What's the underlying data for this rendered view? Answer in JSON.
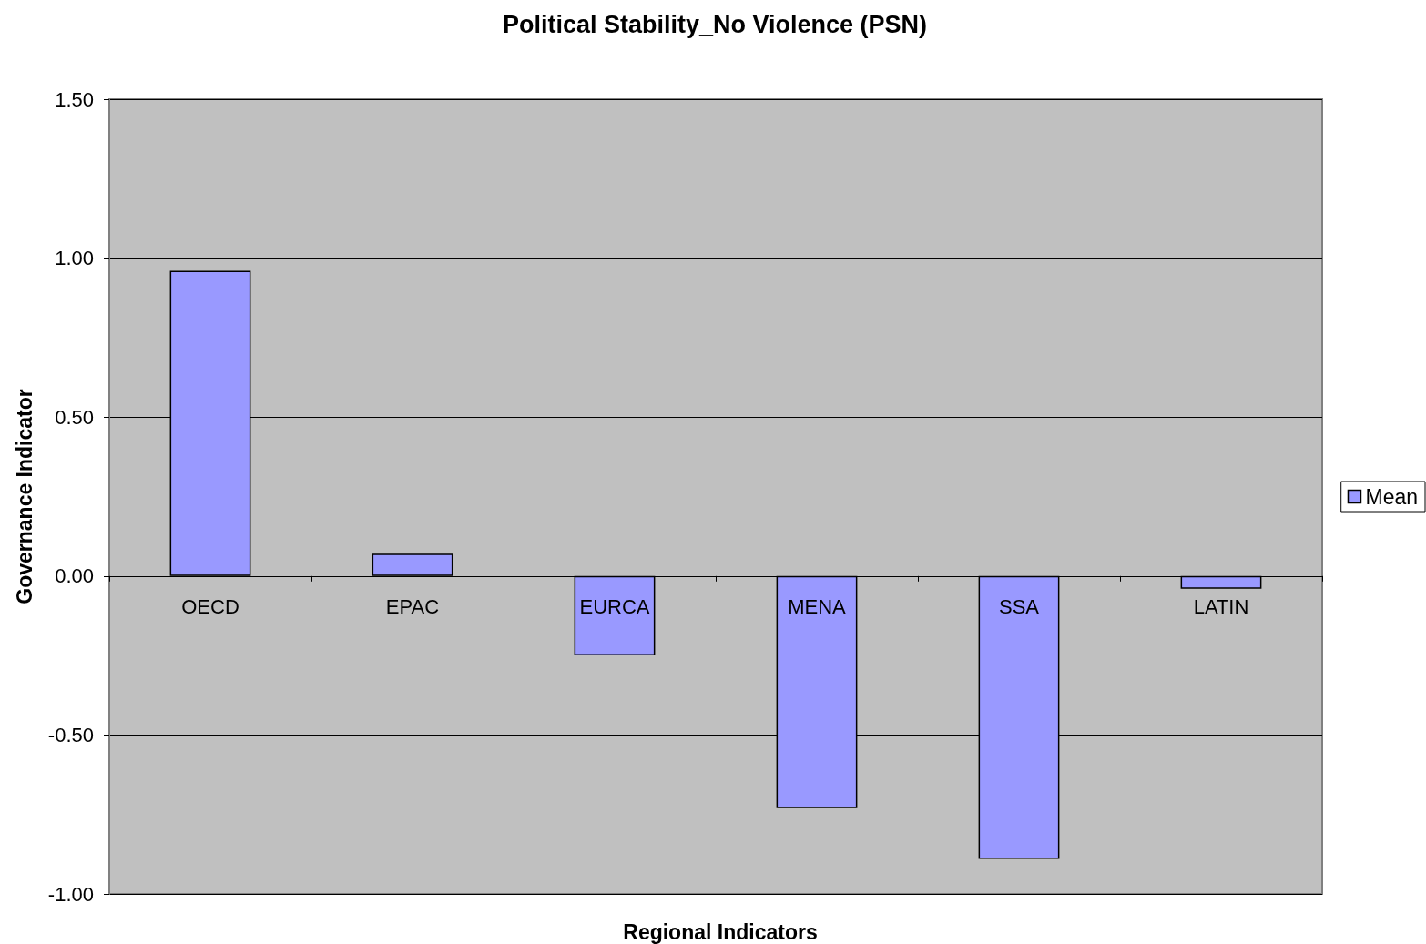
{
  "chart_data": {
    "type": "bar",
    "title": "Political Stability_No Violence (PSN)",
    "xlabel": "Regional Indicators",
    "ylabel": "Governance Indicator",
    "categories": [
      "OECD",
      "EPAC",
      "EURCA",
      "MENA",
      "SSA",
      "LATIN"
    ],
    "series": [
      {
        "name": "Mean",
        "color": "#9999ff",
        "values": [
          0.96,
          0.07,
          -0.25,
          -0.73,
          -0.89,
          -0.04
        ]
      }
    ],
    "ylim": [
      -1,
      1.5
    ],
    "yticks": [
      {
        "value": -1,
        "label": "-1.00"
      },
      {
        "value": -0.5,
        "label": "-0.50"
      },
      {
        "value": 0,
        "label": "0.00"
      },
      {
        "value": 0.5,
        "label": "0.50"
      },
      {
        "value": 1,
        "label": "1.00"
      },
      {
        "value": 1.5,
        "label": "1.50"
      }
    ],
    "grid": "y",
    "legend": "right"
  }
}
